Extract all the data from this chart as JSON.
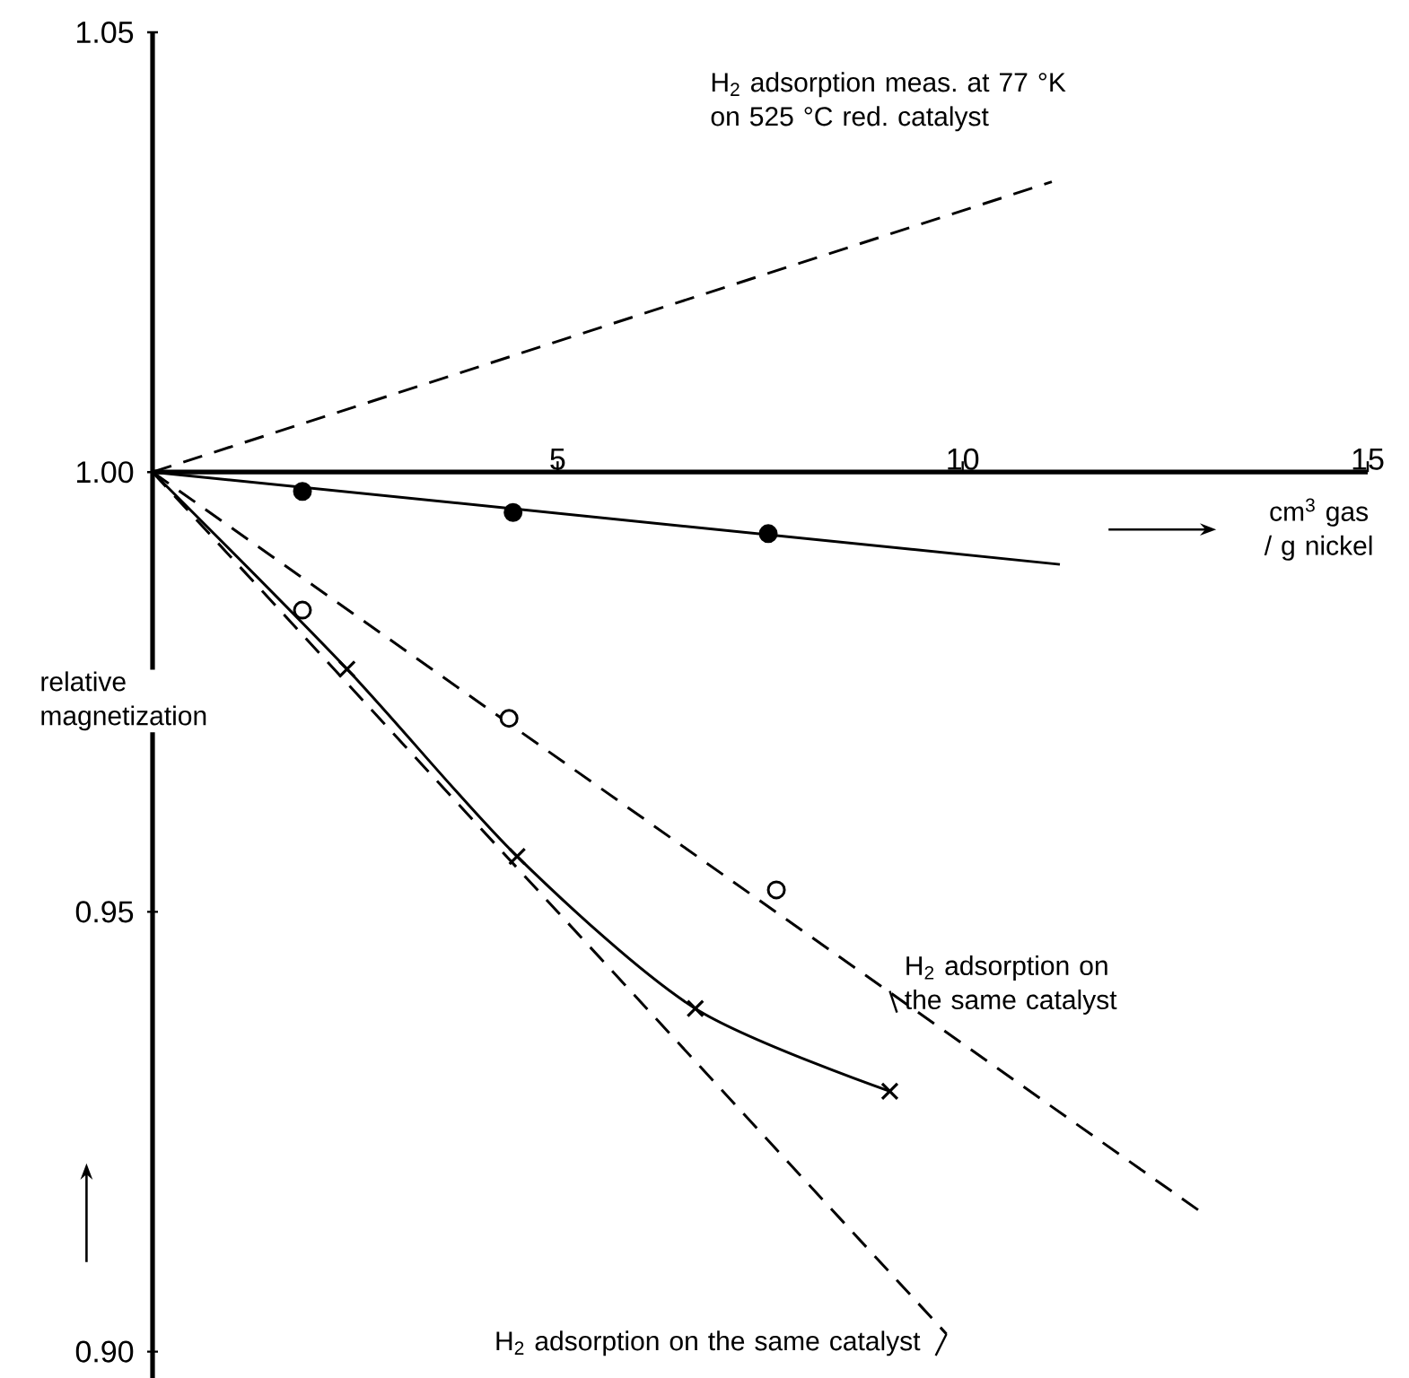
{
  "chart_data": {
    "type": "line",
    "xlabel": "cm$^{3}$ gas / g nickel",
    "ylabel": "relative magnetization",
    "xlim": [
      0,
      15
    ],
    "ylim": [
      0.897,
      1.05
    ],
    "xticks": [
      5,
      10,
      15
    ],
    "yticks": [
      {
        "value": 0.9,
        "label": "0.90"
      },
      {
        "value": 0.95,
        "label": "0.95"
      },
      {
        "value": 1.0,
        "label": "1.00"
      },
      {
        "value": 1.05,
        "label": "1.05"
      }
    ],
    "grid": false,
    "series": [
      {
        "color": "#000000",
        "line_style": "solid",
        "marker": "none",
        "x": [
          0,
          11.2
        ],
        "values": [
          1.0,
          0.9895
        ]
      },
      {
        "type": "scatter",
        "color": "#000000",
        "marker": "circle",
        "x": [
          1.85,
          4.45,
          7.6
        ],
        "values": [
          0.9978,
          0.9954,
          0.993
        ]
      },
      {
        "color": "#000000",
        "line_style": "dashed",
        "marker": "none",
        "x": [
          0,
          13.0
        ],
        "values": [
          1.0,
          0.9155
        ]
      },
      {
        "type": "scatter",
        "color": "#ffffff",
        "marker": "circle",
        "x": [
          1.85,
          4.4,
          7.7
        ],
        "values": [
          0.9843,
          0.972,
          0.9525
        ]
      },
      {
        "color": "#000000",
        "line_style": "solid",
        "marker": "none",
        "x": [
          0,
          2.4,
          4.5,
          6.7,
          9.1
        ],
        "values": [
          1.0,
          0.9776,
          0.9563,
          0.939,
          0.9296
        ]
      },
      {
        "type": "scatter",
        "color": "#000000",
        "marker": "cross",
        "x": [
          2.4,
          4.5,
          6.7,
          9.1
        ],
        "values": [
          0.9776,
          0.9563,
          0.939,
          0.9296
        ]
      },
      {
        "color": "#000000",
        "line_style": "dashed",
        "marker": "none",
        "x": [
          0,
          11.1
        ],
        "values": [
          1.0,
          1.033
        ]
      },
      {
        "color": "#000000",
        "line_style": "dashed",
        "marker": "none",
        "x": [
          0,
          9.8
        ],
        "values": [
          1.0,
          0.902
        ]
      }
    ],
    "annotations": [
      "H$_{2}$ adsorption meas. at 77 °K on 525 °C red. catalyst",
      {
        "text": "H$_{2}$ adsorption on the same catalyst",
        "x": 9.1,
        "y": 0.941
      },
      {
        "text": "H$_{2}$ adsorption on the same catalyst",
        "x": 9.8,
        "y": 0.902
      }
    ]
  }
}
